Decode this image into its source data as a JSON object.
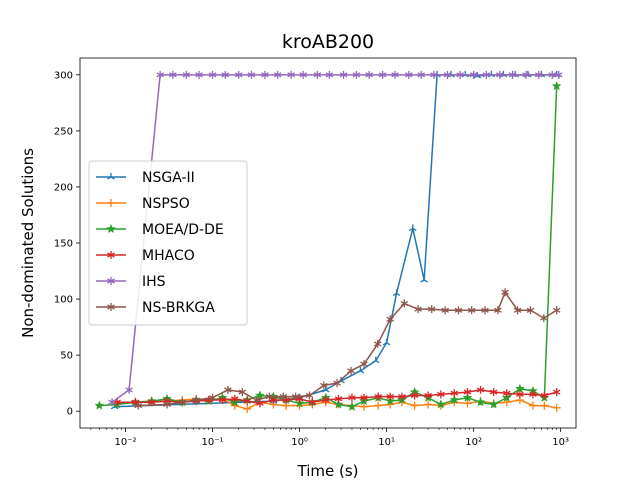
{
  "chart_data": {
    "type": "line",
    "title": "kroAB200",
    "xlabel": "Time (s)",
    "ylabel": "Non-dominated Solutions",
    "x_scale": "log",
    "xlim": [
      0.003,
      1500
    ],
    "ylim": [
      -15,
      315
    ],
    "x_ticks": [
      {
        "value": 0.01,
        "label": "10⁻²"
      },
      {
        "value": 0.1,
        "label": "10⁻¹"
      },
      {
        "value": 1,
        "label": "10⁰"
      },
      {
        "value": 10,
        "label": "10¹"
      },
      {
        "value": 100,
        "label": "10²"
      },
      {
        "value": 1000,
        "label": "10³"
      }
    ],
    "y_ticks": [
      0,
      50,
      100,
      150,
      200,
      250,
      300
    ],
    "grid": false,
    "legend_position": "center-left",
    "series": [
      {
        "name": "NSGA-II",
        "color": "#1f77b4",
        "marker": "tri",
        "x": [
          0.0075,
          0.5,
          1,
          2,
          3,
          5,
          7.5,
          10,
          13,
          20,
          27,
          38,
          55,
          80,
          110,
          160,
          220,
          300,
          420,
          600,
          900
        ],
        "y": [
          4,
          9,
          12,
          19,
          27,
          36,
          45,
          61,
          105,
          163,
          117,
          300,
          300,
          300,
          299,
          300,
          300,
          300,
          300,
          300,
          300
        ]
      },
      {
        "name": "NSPSO",
        "color": "#ff7f0e",
        "marker": "plus",
        "x": [
          0.008,
          0.013,
          0.02,
          0.03,
          0.045,
          0.065,
          0.09,
          0.13,
          0.18,
          0.25,
          0.35,
          0.5,
          0.7,
          1,
          1.4,
          2,
          2.8,
          4,
          5.5,
          8,
          11,
          15,
          21,
          30,
          42,
          60,
          85,
          120,
          170,
          240,
          340,
          480,
          650,
          900
        ],
        "y": [
          8,
          8,
          9,
          9,
          10,
          11,
          10,
          11,
          5,
          2,
          8,
          6,
          5,
          5,
          6,
          8,
          6,
          5,
          4,
          5,
          6,
          8,
          5,
          6,
          5,
          8,
          7,
          9,
          7,
          8,
          10,
          5,
          5,
          3
        ]
      },
      {
        "name": "MOEA/D-DE",
        "color": "#2ca02c",
        "marker": "star",
        "x": [
          0.005,
          0.008,
          0.013,
          0.02,
          0.03,
          0.045,
          0.065,
          0.09,
          0.13,
          0.18,
          0.25,
          0.35,
          0.5,
          0.7,
          1,
          1.4,
          2,
          2.8,
          4,
          5.5,
          8,
          11,
          15,
          21,
          30,
          42,
          60,
          85,
          120,
          170,
          240,
          340,
          480,
          650,
          900
        ],
        "y": [
          5,
          6,
          8,
          9,
          11,
          8,
          10,
          9,
          12,
          8,
          10,
          14,
          13,
          10,
          7,
          8,
          12,
          6,
          4,
          9,
          12,
          9,
          10,
          17,
          12,
          6,
          10,
          12,
          8,
          6,
          12,
          20,
          18,
          12,
          290
        ]
      },
      {
        "name": "MHACO",
        "color": "#d62728",
        "marker": "asterisk",
        "x": [
          0.008,
          0.013,
          0.02,
          0.03,
          0.045,
          0.065,
          0.09,
          0.13,
          0.18,
          0.25,
          0.35,
          0.5,
          0.7,
          1,
          1.4,
          2,
          2.8,
          4,
          5.5,
          8,
          11,
          15,
          21,
          30,
          42,
          60,
          85,
          120,
          170,
          240,
          340,
          480,
          650,
          900
        ],
        "y": [
          8,
          8,
          8,
          9,
          8,
          9,
          10,
          10,
          11,
          9,
          7,
          10,
          10,
          11,
          8,
          10,
          11,
          12,
          12,
          13,
          13,
          13,
          14,
          14,
          15,
          16,
          17,
          19,
          17,
          16,
          15,
          15,
          14,
          17
        ]
      },
      {
        "name": "IHS",
        "color": "#9467bd",
        "marker": "asterisk",
        "x": [
          0.007,
          0.011,
          0.025,
          0.035,
          0.05,
          0.07,
          0.1,
          0.14,
          0.2,
          0.28,
          0.4,
          0.56,
          0.8,
          1.1,
          1.6,
          2.2,
          3.2,
          4.5,
          6.3,
          9,
          12.5,
          18,
          25,
          35,
          50,
          70,
          100,
          140,
          200,
          280,
          400,
          560,
          800,
          950
        ],
        "y": [
          8,
          19,
          300,
          300,
          300,
          300,
          300,
          300,
          300,
          300,
          300,
          300,
          300,
          300,
          300,
          300,
          300,
          300,
          300,
          300,
          300,
          300,
          300,
          300,
          300,
          300,
          300,
          300,
          300,
          300,
          300,
          300,
          300,
          300
        ]
      },
      {
        "name": "NS-BRKGA",
        "color": "#8c564b",
        "marker": "asterisk",
        "x": [
          0.014,
          0.03,
          0.045,
          0.065,
          0.1,
          0.15,
          0.22,
          0.32,
          0.45,
          0.65,
          0.9,
          1.3,
          1.9,
          2.7,
          3.9,
          5.5,
          7.9,
          11,
          16,
          23,
          33,
          47,
          67,
          95,
          135,
          190,
          230,
          320,
          450,
          640,
          900
        ],
        "y": [
          5,
          6,
          8,
          10,
          12,
          19,
          17,
          10,
          13,
          13,
          13,
          14,
          23,
          25,
          36,
          42,
          60,
          82,
          96,
          91,
          91,
          90,
          90,
          90,
          90,
          90,
          106,
          90,
          90,
          83,
          90
        ]
      }
    ]
  }
}
